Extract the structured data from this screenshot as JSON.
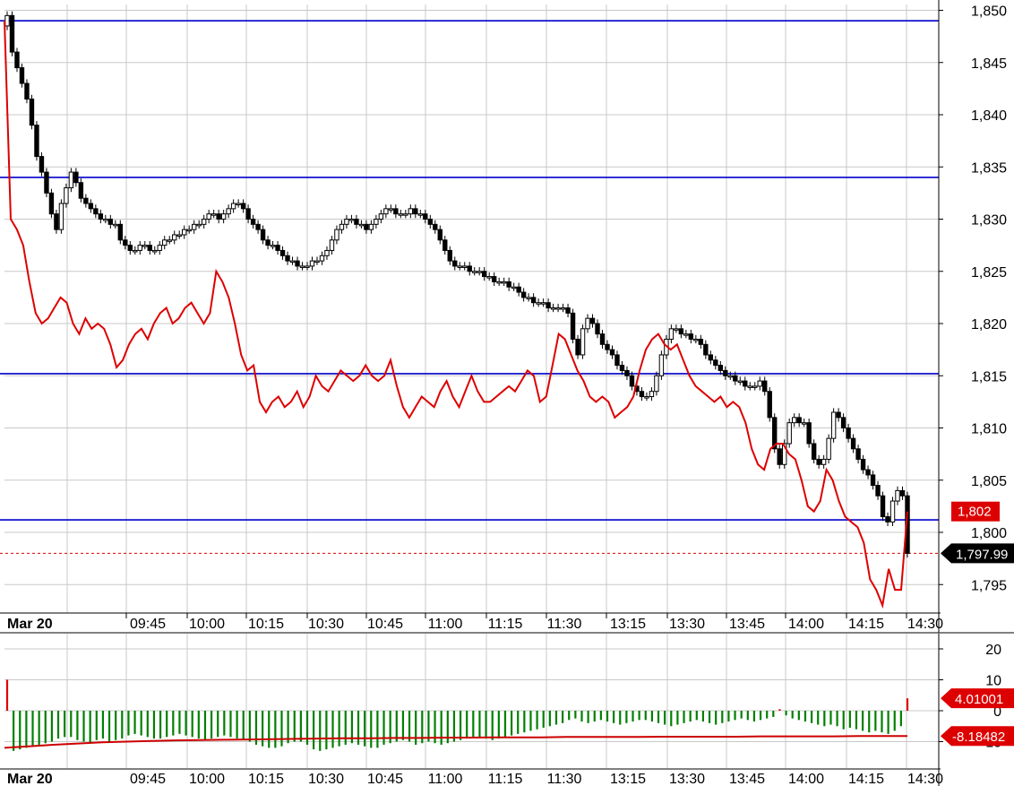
{
  "chart_data": [
    {
      "type": "candlestick",
      "title": "",
      "xlabel": "",
      "ylabel": "",
      "ylim": [
        1791,
        1851.5
      ],
      "grid": true,
      "date_label": "Mar 20",
      "x_ticks": [
        "09:45",
        "10:00",
        "10:15",
        "10:30",
        "10:45",
        "11:00",
        "11:15",
        "11:30",
        "13:15",
        "13:30",
        "13:45",
        "14:00",
        "14:15",
        "14:30"
      ],
      "y_ticks": [
        "1,850",
        "1,845",
        "1,840",
        "1,835",
        "1,830",
        "1,825",
        "1,820",
        "1,815",
        "1,810",
        "1,805",
        "1,800",
        "1,795"
      ],
      "y_tick_values": [
        1850,
        1845,
        1840,
        1835,
        1830,
        1825,
        1820,
        1815,
        1810,
        1805,
        1800,
        1795
      ],
      "horizontal_levels": [
        1849,
        1834,
        1815.2,
        1801.2
      ],
      "level_color": "#0000cc",
      "last_price": 1797.99,
      "last_price_label": "1,797.99",
      "red_line_last_label": "1,802",
      "red_line_last_value": 1802,
      "candle_up_color": "#ffffff",
      "candle_down_color": "#000000",
      "red_line_color": "#dd0000",
      "candles_close": [
        1849.5,
        1846.0,
        1844.5,
        1843.0,
        1841.5,
        1839.0,
        1836.0,
        1834.5,
        1832.5,
        1830.5,
        1829.0,
        1831.5,
        1833.0,
        1834.5,
        1833.5,
        1832.0,
        1831.5,
        1831.0,
        1830.5,
        1830.0,
        1830.0,
        1829.5,
        1829.5,
        1828.0,
        1827.5,
        1827.0,
        1827.0,
        1827.5,
        1827.5,
        1827.0,
        1827.0,
        1827.5,
        1828.0,
        1828.0,
        1828.5,
        1828.5,
        1829.0,
        1829.0,
        1829.5,
        1829.5,
        1830.0,
        1830.5,
        1830.5,
        1830.0,
        1830.5,
        1831.0,
        1831.5,
        1831.5,
        1831.0,
        1830.0,
        1829.5,
        1829.0,
        1828.0,
        1827.5,
        1827.5,
        1827.0,
        1826.5,
        1826.0,
        1826.0,
        1825.5,
        1825.5,
        1825.5,
        1826.0,
        1826.0,
        1826.5,
        1827.0,
        1828.0,
        1829.0,
        1829.5,
        1830.0,
        1830.0,
        1829.5,
        1829.5,
        1829.0,
        1829.5,
        1830.0,
        1830.5,
        1831.0,
        1831.0,
        1830.5,
        1830.5,
        1830.5,
        1831.0,
        1830.5,
        1830.5,
        1830.0,
        1829.5,
        1829.0,
        1828.0,
        1827.0,
        1826.0,
        1825.5,
        1825.5,
        1825.5,
        1825.0,
        1825.0,
        1825.0,
        1824.5,
        1824.5,
        1824.0,
        1824.0,
        1824.0,
        1823.5,
        1823.5,
        1823.0,
        1822.5,
        1822.5,
        1822.0,
        1822.0,
        1822.0,
        1821.5,
        1821.5,
        1821.5,
        1821.5,
        1821.0,
        1818.5,
        1817.0,
        1819.5,
        1820.5,
        1820.0,
        1819.0,
        1818.0,
        1817.5,
        1817.0,
        1816.0,
        1815.5,
        1815.0,
        1814.0,
        1813.5,
        1813.0,
        1813.0,
        1813.5,
        1815.0,
        1817.0,
        1818.5,
        1819.5,
        1819.5,
        1819.0,
        1819.0,
        1818.5,
        1818.5,
        1818.0,
        1817.0,
        1816.5,
        1816.0,
        1815.5,
        1815.0,
        1815.0,
        1814.5,
        1814.5,
        1814.0,
        1814.0,
        1814.0,
        1814.5,
        1813.5,
        1811.0,
        1808.0,
        1806.5,
        1808.5,
        1810.5,
        1811.0,
        1810.5,
        1810.5,
        1808.5,
        1807.0,
        1806.5,
        1807.0,
        1809.0,
        1811.5,
        1811.0,
        1810.0,
        1809.0,
        1808.0,
        1807.0,
        1806.0,
        1805.5,
        1804.5,
        1803.5,
        1801.5,
        1801.0,
        1803.0,
        1804.0,
        1803.5,
        1797.99
      ],
      "red_line": [
        1849.0,
        1830.0,
        1829.0,
        1827.5,
        1824.0,
        1821.0,
        1820.0,
        1820.5,
        1821.5,
        1822.5,
        1822.0,
        1820.0,
        1819.0,
        1820.5,
        1819.5,
        1820.0,
        1819.5,
        1818.0,
        1815.8,
        1816.5,
        1818.0,
        1819.0,
        1819.5,
        1818.5,
        1820.0,
        1821.0,
        1821.5,
        1820.0,
        1820.5,
        1821.5,
        1822.0,
        1821.0,
        1820.0,
        1821.0,
        1825.0,
        1824.0,
        1822.5,
        1820.0,
        1817.0,
        1815.5,
        1816.0,
        1812.5,
        1811.5,
        1812.5,
        1813.0,
        1812.0,
        1812.5,
        1813.5,
        1812.0,
        1813.0,
        1815.0,
        1814.0,
        1813.5,
        1814.5,
        1815.5,
        1815.0,
        1814.5,
        1815.0,
        1816.0,
        1815.0,
        1814.5,
        1815.0,
        1816.5,
        1814.0,
        1812.0,
        1811.0,
        1812.0,
        1813.0,
        1812.5,
        1812.0,
        1813.5,
        1814.5,
        1813.0,
        1812.0,
        1813.5,
        1815.0,
        1813.5,
        1812.5,
        1812.5,
        1813.0,
        1813.5,
        1814.0,
        1813.5,
        1814.5,
        1815.5,
        1815.0,
        1812.5,
        1813.0,
        1816.0,
        1819.0,
        1818.5,
        1817.0,
        1815.5,
        1814.5,
        1813.0,
        1812.5,
        1813.0,
        1812.5,
        1811.0,
        1811.5,
        1812.0,
        1813.0,
        1815.5,
        1817.5,
        1818.5,
        1819.0,
        1818.0,
        1817.5,
        1818.0,
        1816.5,
        1815.0,
        1814.0,
        1813.5,
        1813.0,
        1812.5,
        1813.0,
        1812.0,
        1812.5,
        1812.0,
        1810.5,
        1808.0,
        1806.5,
        1806.0,
        1808.0,
        1808.5,
        1808.5,
        1807.5,
        1807.0,
        1805.0,
        1802.5,
        1802.0,
        1803.0,
        1806.0,
        1805.0,
        1803.0,
        1801.5,
        1801.0,
        1800.5,
        1799.0,
        1795.5,
        1794.5,
        1793.0,
        1796.5,
        1794.5,
        1794.5,
        1802.0
      ]
    },
    {
      "type": "bar",
      "title": "",
      "ylim": [
        -15,
        25
      ],
      "y_ticks": [
        "20",
        "10",
        "0",
        "-10"
      ],
      "y_tick_values": [
        20,
        10,
        0,
        -10
      ],
      "last_value": 4.01001,
      "last_value_label": "4.01001",
      "signal_last_value": -8.18482,
      "signal_last_label": "-8.18482",
      "bar_color": "#008000",
      "signal_color": "#cc0000",
      "values": [
        10.0,
        -13.0,
        -12.5,
        -12.0,
        -11.5,
        -11.0,
        -10.5,
        -10.0,
        -9.0,
        -8.5,
        -8.5,
        -9.5,
        -10.0,
        -10.5,
        -9.5,
        -9.0,
        -10.0,
        -9.5,
        -9.0,
        -8.0,
        -7.5,
        -8.0,
        -8.5,
        -9.0,
        -9.0,
        -8.5,
        -8.0,
        -7.5,
        -8.0,
        -8.5,
        -9.0,
        -9.5,
        -9.0,
        -8.5,
        -8.0,
        -8.5,
        -9.0,
        -9.5,
        -10.0,
        -11.0,
        -11.5,
        -12.0,
        -12.0,
        -11.5,
        -10.5,
        -10.0,
        -10.0,
        -11.0,
        -12.5,
        -13.0,
        -12.5,
        -12.0,
        -11.5,
        -11.0,
        -10.5,
        -11.0,
        -11.5,
        -12.0,
        -12.0,
        -11.0,
        -10.5,
        -10.0,
        -9.5,
        -10.0,
        -11.0,
        -10.5,
        -10.0,
        -10.5,
        -11.0,
        -10.5,
        -10.0,
        -9.5,
        -9.0,
        -8.5,
        -8.5,
        -9.0,
        -9.5,
        -9.0,
        -8.5,
        -8.0,
        -7.5,
        -7.0,
        -6.5,
        -6.0,
        -5.5,
        -5.0,
        -4.5,
        -4.0,
        -3.0,
        -2.5,
        -3.5,
        -4.0,
        -3.5,
        -3.0,
        -3.5,
        -4.0,
        -4.5,
        -4.0,
        -3.5,
        -3.0,
        -3.0,
        -3.5,
        -4.0,
        -4.5,
        -5.0,
        -4.5,
        -4.0,
        -3.5,
        -3.0,
        -3.5,
        -4.0,
        -4.5,
        -4.0,
        -3.5,
        -3.0,
        -2.5,
        -3.0,
        -3.5,
        -3.0,
        -2.5,
        -2.0,
        0.5,
        -1.5,
        -2.5,
        -3.0,
        -3.5,
        -4.0,
        -4.5,
        -5.0,
        -4.5,
        -5.0,
        -6.0,
        -5.5,
        -6.0,
        -6.5,
        -7.0,
        -6.5,
        -7.0,
        -7.5,
        -6.5,
        -5.0,
        4.01001
      ],
      "signal": [
        -12.0,
        -11.5,
        -11.0,
        -10.6,
        -10.2,
        -10.0,
        -9.8,
        -9.6,
        -9.5,
        -9.4,
        -9.3,
        -9.2,
        -9.1,
        -9.0,
        -8.9,
        -8.9,
        -8.8,
        -8.8,
        -8.7,
        -8.7,
        -8.6,
        -8.6,
        -8.6,
        -8.5,
        -8.5,
        -8.5,
        -8.5,
        -8.4,
        -8.4,
        -8.4,
        -8.4,
        -8.3,
        -8.3,
        -8.3,
        -8.3,
        -8.2,
        -8.2,
        -8.18482
      ]
    }
  ]
}
